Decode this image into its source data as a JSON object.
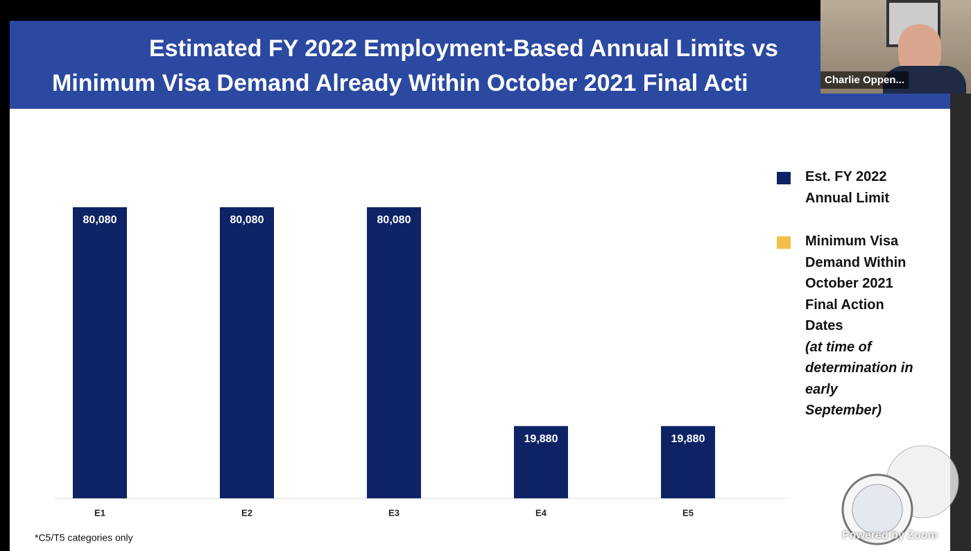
{
  "chart_data": {
    "type": "bar",
    "title_lines": [
      "Estimated FY 2022 Employment-Based Annual Limits vs",
      "Minimum Visa Demand Already Within October 2021 Final Acti"
    ],
    "categories": [
      "E1",
      "E2",
      "E3",
      "E4",
      "E5"
    ],
    "series": [
      {
        "name": "Est. FY 2022 Annual Limit",
        "color": "#0e2366",
        "values": [
          80080,
          80080,
          80080,
          19880,
          19880
        ],
        "value_labels": [
          "80,080",
          "80,080",
          "80,080",
          "19,880",
          "19,880"
        ]
      },
      {
        "name": "Minimum Visa Demand Within October 2021 Final Action Dates",
        "color": "#f2c04a",
        "values": [
          null,
          null,
          null,
          null,
          null
        ]
      }
    ],
    "legend_note": "(at time of determination in early September)",
    "footnote": "*C5/T5 categories only",
    "legend": "right"
  },
  "zoom": {
    "participant_name": "Charlie Oppen...",
    "watermark": "Powered by Zoom"
  }
}
